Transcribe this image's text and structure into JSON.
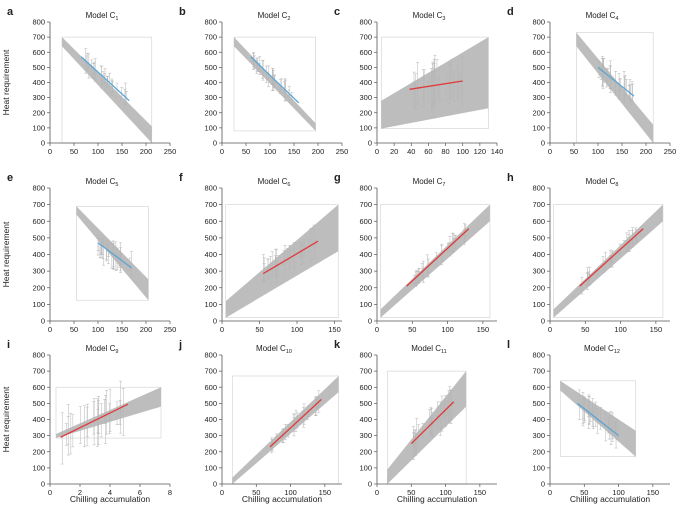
{
  "figure": {
    "xlabel": "Chilling accumulation",
    "ylabel": "Heat requirement",
    "y_ticks": [
      0,
      100,
      200,
      300,
      400,
      500,
      600,
      700,
      800
    ],
    "ylim": [
      0,
      800
    ],
    "colors": {
      "band": "#bdbdbd",
      "errorbar": "#b5b5b5",
      "blue_line": "#5aa5d6",
      "red_line": "#e03a3a",
      "axis": "#555555",
      "frame": "#d0d0d0"
    }
  },
  "chart_data": [
    {
      "letter": "a",
      "title": "Model C",
      "sub": "1",
      "type": "line",
      "trend": "negative",
      "xlim": [
        0,
        250
      ],
      "x_ticks": [
        0,
        50,
        100,
        150,
        200,
        250
      ],
      "band": [
        [
          25,
          700,
          25,
          640
        ],
        [
          212,
          110,
          212,
          0
        ]
      ],
      "series": [
        {
          "name": "fit",
          "color": "blue",
          "x": [
            65,
            165
          ],
          "y": [
            570,
            280
          ]
        }
      ],
      "frame": [
        25,
        0,
        212,
        700
      ],
      "scatter": {
        "x": [
          70,
          160
        ],
        "y": [
          540,
          300
        ],
        "spread": 55
      }
    },
    {
      "letter": "b",
      "title": "Model C",
      "sub": "2",
      "type": "line",
      "trend": "negative",
      "xlim": [
        0,
        250
      ],
      "x_ticks": [
        0,
        50,
        100,
        150,
        200,
        250
      ],
      "band": [
        [
          25,
          700,
          25,
          640
        ],
        [
          195,
          130,
          195,
          80
        ]
      ],
      "series": [
        {
          "name": "fit",
          "color": "blue",
          "x": [
            60,
            160
          ],
          "y": [
            570,
            265
          ]
        }
      ],
      "frame": [
        25,
        80,
        195,
        700
      ],
      "scatter": {
        "x": [
          65,
          155
        ],
        "y": [
          545,
          290
        ],
        "spread": 50
      }
    },
    {
      "letter": "c",
      "title": "Model C",
      "sub": "3",
      "type": "line",
      "trend": "positive",
      "xlim": [
        0,
        140
      ],
      "x_ticks": [
        0,
        20,
        40,
        60,
        80,
        100,
        120,
        140
      ],
      "band": [
        [
          5,
          280,
          5,
          95
        ],
        [
          130,
          700,
          130,
          230
        ]
      ],
      "series": [
        {
          "name": "fit",
          "color": "red",
          "x": [
            38,
            100
          ],
          "y": [
            355,
            410
          ]
        }
      ],
      "frame": [
        5,
        95,
        130,
        700
      ],
      "scatter": {
        "x": [
          40,
          100
        ],
        "y": [
          360,
          405
        ],
        "spread": 120
      }
    },
    {
      "letter": "d",
      "title": "Model C",
      "sub": "4",
      "type": "line",
      "trend": "negative",
      "xlim": [
        0,
        250
      ],
      "x_ticks": [
        0,
        50,
        100,
        150,
        200,
        250
      ],
      "band": [
        [
          55,
          730,
          55,
          640
        ],
        [
          215,
          120,
          215,
          0
        ]
      ],
      "series": [
        {
          "name": "fit",
          "color": "blue",
          "x": [
            100,
            175
          ],
          "y": [
            500,
            310
          ]
        }
      ],
      "frame": [
        55,
        0,
        215,
        730
      ],
      "scatter": {
        "x": [
          100,
          175
        ],
        "y": [
          490,
          320
        ],
        "spread": 70
      }
    },
    {
      "letter": "e",
      "title": "Model C",
      "sub": "5",
      "type": "line",
      "trend": "negative",
      "xlim": [
        0,
        250
      ],
      "x_ticks": [
        0,
        50,
        100,
        150,
        200,
        250
      ],
      "band": [
        [
          55,
          690,
          55,
          640
        ],
        [
          205,
          250,
          205,
          125
        ]
      ],
      "series": [
        {
          "name": "fit",
          "color": "blue",
          "x": [
            100,
            170
          ],
          "y": [
            470,
            320
          ]
        }
      ],
      "frame": [
        55,
        125,
        205,
        690
      ],
      "scatter": {
        "x": [
          100,
          170
        ],
        "y": [
          455,
          330
        ],
        "spread": 60
      }
    },
    {
      "letter": "f",
      "title": "Model C",
      "sub": "6",
      "type": "line",
      "trend": "positive",
      "xlim": [
        0,
        160
      ],
      "x_ticks": [
        0,
        50,
        100,
        150
      ],
      "band": [
        [
          5,
          120,
          5,
          20
        ],
        [
          155,
          700,
          155,
          420
        ]
      ],
      "series": [
        {
          "name": "fit",
          "color": "red",
          "x": [
            55,
            128
          ],
          "y": [
            285,
            480
          ]
        }
      ],
      "frame": [
        5,
        20,
        155,
        700
      ],
      "scatter": {
        "x": [
          55,
          125
        ],
        "y": [
          300,
          470
        ],
        "spread": 70
      }
    },
    {
      "letter": "g",
      "title": "Model C",
      "sub": "7",
      "type": "line",
      "trend": "positive",
      "xlim": [
        0,
        170
      ],
      "x_ticks": [
        0,
        50,
        100,
        150
      ],
      "band": [
        [
          5,
          70,
          5,
          20
        ],
        [
          160,
          700,
          160,
          600
        ]
      ],
      "series": [
        {
          "name": "fit",
          "color": "red",
          "x": [
            42,
            130
          ],
          "y": [
            210,
            555
          ]
        }
      ],
      "frame": [
        5,
        20,
        160,
        700
      ],
      "scatter": {
        "x": [
          45,
          128
        ],
        "y": [
          220,
          545
        ],
        "spread": 45
      }
    },
    {
      "letter": "h",
      "title": "Model C",
      "sub": "8",
      "type": "line",
      "trend": "positive",
      "xlim": [
        0,
        170
      ],
      "x_ticks": [
        0,
        50,
        100,
        150
      ],
      "band": [
        [
          5,
          70,
          5,
          20
        ],
        [
          160,
          700,
          160,
          600
        ]
      ],
      "series": [
        {
          "name": "fit",
          "color": "red",
          "x": [
            42,
            132
          ],
          "y": [
            210,
            555
          ]
        }
      ],
      "frame": [
        5,
        20,
        160,
        700
      ],
      "scatter": {
        "x": [
          45,
          130
        ],
        "y": [
          220,
          545
        ],
        "spread": 45
      }
    },
    {
      "letter": "i",
      "title": "Model C",
      "sub": "9",
      "type": "line",
      "trend": "positive",
      "xlim": [
        0,
        8
      ],
      "x_ticks": [
        0,
        2,
        4,
        6,
        8
      ],
      "band": [
        [
          0.4,
          310,
          0.4,
          285
        ],
        [
          7.4,
          600,
          7.4,
          480
        ]
      ],
      "series": [
        {
          "name": "fit",
          "color": "red",
          "x": [
            0.7,
            5.2
          ],
          "y": [
            290,
            495
          ]
        }
      ],
      "frame": [
        0.4,
        285,
        7.4,
        600
      ],
      "scatter": {
        "x": [
          0.8,
          5
        ],
        "y": [
          300,
          480
        ],
        "spread": 110
      }
    },
    {
      "letter": "j",
      "title": "Model C",
      "sub": "10",
      "type": "line",
      "trend": "positive",
      "xlim": [
        0,
        175
      ],
      "x_ticks": [
        0,
        50,
        100,
        150
      ],
      "band": [
        [
          15,
          40,
          15,
          0
        ],
        [
          170,
          670,
          170,
          570
        ]
      ],
      "series": [
        {
          "name": "fit",
          "color": "red",
          "x": [
            70,
            145
          ],
          "y": [
            230,
            525
          ]
        }
      ],
      "frame": [
        15,
        0,
        170,
        670
      ],
      "scatter": {
        "x": [
          72,
          142
        ],
        "y": [
          240,
          515
        ],
        "spread": 45
      }
    },
    {
      "letter": "k",
      "title": "Model C",
      "sub": "11",
      "type": "line",
      "trend": "positive",
      "xlim": [
        0,
        175
      ],
      "x_ticks": [
        0,
        50,
        100,
        150
      ],
      "band": [
        [
          15,
          90,
          15,
          0
        ],
        [
          130,
          700,
          130,
          480
        ]
      ],
      "series": [
        {
          "name": "fit",
          "color": "red",
          "x": [
            50,
            112
          ],
          "y": [
            250,
            510
          ]
        }
      ],
      "frame": [
        15,
        0,
        130,
        700
      ],
      "scatter": {
        "x": [
          52,
          110
        ],
        "y": [
          260,
          500
        ],
        "spread": 75
      }
    },
    {
      "letter": "l",
      "title": "Model C",
      "sub": "12",
      "type": "line",
      "trend": "negative",
      "xlim": [
        0,
        175
      ],
      "x_ticks": [
        0,
        50,
        100,
        150
      ],
      "band": [
        [
          15,
          640,
          15,
          580
        ],
        [
          125,
          330,
          125,
          170
        ]
      ],
      "series": [
        {
          "name": "fit",
          "color": "blue",
          "x": [
            40,
            100
          ],
          "y": [
            500,
            300
          ]
        }
      ],
      "frame": [
        15,
        170,
        125,
        640
      ],
      "scatter": {
        "x": [
          42,
          100
        ],
        "y": [
          490,
          310
        ],
        "spread": 70
      }
    }
  ]
}
